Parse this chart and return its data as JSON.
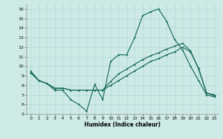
{
  "xlabel": "Humidex (Indice chaleur)",
  "xlim": [
    -0.5,
    23.5
  ],
  "ylim": [
    5,
    16.5
  ],
  "yticks": [
    5,
    6,
    7,
    8,
    9,
    10,
    11,
    12,
    13,
    14,
    15,
    16
  ],
  "xticks": [
    0,
    1,
    2,
    3,
    4,
    5,
    6,
    7,
    8,
    9,
    10,
    11,
    12,
    13,
    14,
    15,
    16,
    17,
    18,
    19,
    20,
    21,
    22,
    23
  ],
  "background_color": "#cdeae6",
  "grid_color": "#b0d8d4",
  "line_color": "#1a6b5a",
  "line1_x": [
    0,
    1,
    2,
    3,
    4,
    5,
    6,
    7,
    8,
    9,
    10,
    11,
    12,
    13,
    14,
    15,
    16,
    17,
    18,
    19,
    20,
    21,
    22,
    23
  ],
  "line1_y": [
    9.5,
    8.5,
    8.2,
    7.5,
    7.5,
    6.5,
    6.0,
    5.3,
    8.1,
    6.5,
    10.5,
    11.2,
    11.2,
    13.0,
    15.3,
    15.7,
    16.0,
    14.7,
    12.8,
    11.7,
    10.0,
    8.5,
    7.0,
    6.8
  ],
  "line2_x": [
    0,
    1,
    2,
    3,
    4,
    5,
    6,
    7,
    8,
    9,
    10,
    11,
    12,
    13,
    14,
    15,
    16,
    17,
    18,
    19,
    20,
    21,
    22,
    23
  ],
  "line2_y": [
    9.3,
    8.5,
    8.2,
    7.7,
    7.7,
    7.5,
    7.5,
    7.5,
    7.5,
    7.5,
    8.0,
    8.5,
    9.0,
    9.5,
    10.0,
    10.5,
    10.8,
    11.2,
    11.5,
    12.0,
    11.5,
    9.8,
    7.2,
    7.0
  ],
  "line3_x": [
    0,
    1,
    2,
    3,
    4,
    5,
    6,
    7,
    8,
    9,
    10,
    11,
    12,
    13,
    14,
    15,
    16,
    17,
    18,
    19,
    20,
    21,
    22,
    23
  ],
  "line3_y": [
    9.3,
    8.5,
    8.2,
    7.7,
    7.7,
    7.5,
    7.5,
    7.5,
    7.5,
    7.5,
    8.4,
    9.2,
    9.7,
    10.2,
    10.7,
    11.1,
    11.4,
    11.8,
    12.1,
    12.4,
    11.6,
    9.7,
    7.2,
    6.9
  ],
  "marker_size": 1.8,
  "linewidth": 0.9
}
